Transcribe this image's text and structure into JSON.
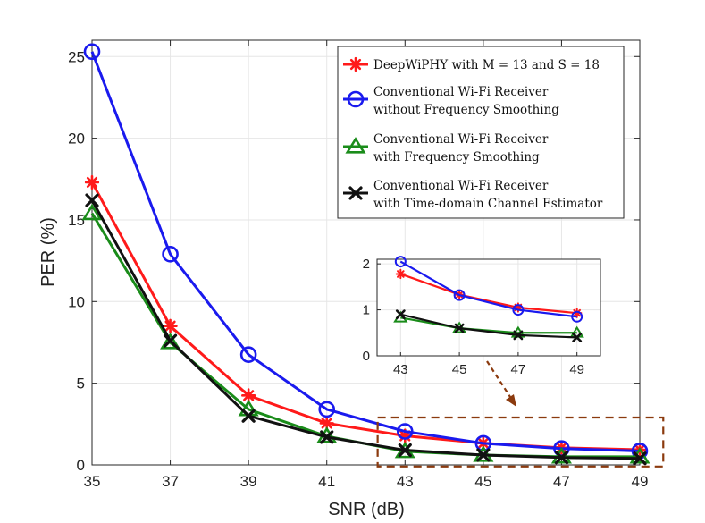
{
  "chart_data": {
    "type": "line",
    "xlabel": "SNR (dB)",
    "ylabel": "PER (%)",
    "x": [
      35,
      37,
      39,
      41,
      43,
      45,
      47,
      49
    ],
    "xlim": [
      35,
      49
    ],
    "ylim": [
      0,
      26
    ],
    "xticks": [
      "35",
      "37",
      "39",
      "41",
      "43",
      "45",
      "47",
      "49"
    ],
    "yticks": [
      "0",
      "5",
      "10",
      "15",
      "20",
      "25"
    ],
    "grid": true,
    "legend_position": "top-right",
    "series": [
      {
        "name": "DeepWiPHY with M = 13 and S = 18",
        "legend_lines": [
          "DeepWiPHY with M = 13 and S = 18"
        ],
        "color": "#ff1a1a",
        "marker": "asterisk",
        "values": [
          17.3,
          8.5,
          4.25,
          2.55,
          1.78,
          1.33,
          1.05,
          0.93
        ]
      },
      {
        "name": "Conventional Wi-Fi Receiver without Frequency Smoothing",
        "legend_lines": [
          "Conventional Wi-Fi Receiver",
          "without Frequency Smoothing"
        ],
        "color": "#1a1aee",
        "marker": "circle",
        "values": [
          25.3,
          12.9,
          6.75,
          3.4,
          2.05,
          1.32,
          1.0,
          0.85
        ]
      },
      {
        "name": "Conventional Wi-Fi Receiver with Frequency Smoothing",
        "legend_lines": [
          "Conventional Wi-Fi Receiver",
          "with Frequency Smoothing"
        ],
        "color": "#1a8c1a",
        "marker": "triangle",
        "values": [
          15.4,
          7.5,
          3.4,
          1.75,
          0.83,
          0.6,
          0.5,
          0.5
        ]
      },
      {
        "name": "Conventional Wi-Fi Receiver with Time-domain Channel Estimator",
        "legend_lines": [
          "Conventional Wi-Fi Receiver",
          "with Time-domain Channel Estimator"
        ],
        "color": "#111111",
        "marker": "x",
        "values": [
          16.2,
          7.6,
          3.0,
          1.7,
          0.9,
          0.6,
          0.45,
          0.4
        ]
      }
    ],
    "inset": {
      "x": [
        43,
        45,
        47,
        49
      ],
      "xlim": [
        42.2,
        49.8
      ],
      "ylim": [
        0,
        2.1
      ],
      "xticks": [
        "43",
        "45",
        "47",
        "49"
      ],
      "yticks": [
        "0",
        "1",
        "2"
      ],
      "zoom_region": {
        "x": [
          42.3,
          49.6
        ],
        "y": [
          -0.1,
          2.9
        ]
      }
    }
  }
}
